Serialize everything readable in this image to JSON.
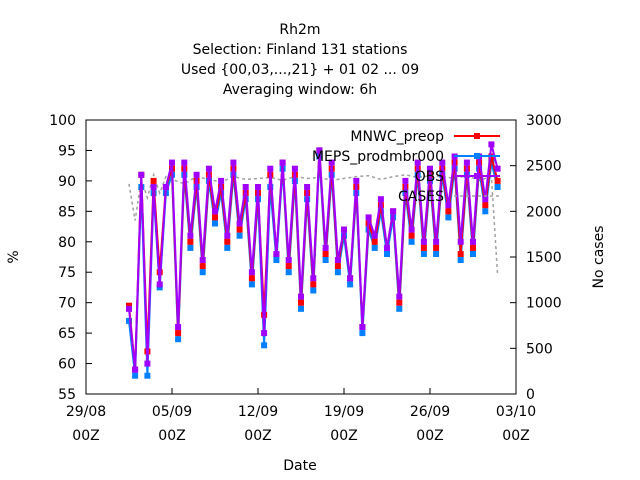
{
  "title_lines": [
    "Rh2m",
    "Selection: Finland     131 stations",
    "Used {00,03,...,21} + 01 02 ... 09",
    "Averaging window:  6h"
  ],
  "chart_data": {
    "type": "line",
    "xlabel": "Date",
    "ylabel": "%",
    "y2label": "No cases",
    "ylim": [
      55,
      100
    ],
    "y2lim": [
      0,
      3000
    ],
    "xlim": [
      "2015-08-29 00Z",
      "2015-10-03 00Z"
    ],
    "yticks": [
      "55",
      "60",
      "65",
      "70",
      "75",
      "80",
      "85",
      "90",
      "95",
      "100"
    ],
    "y2ticks": [
      "0",
      "500",
      "1000",
      "1500",
      "2000",
      "2500",
      "3000"
    ],
    "xticks": [
      {
        "date": "2015-08-29",
        "l1": "29/08",
        "l2": "00Z"
      },
      {
        "date": "2015-09-05",
        "l1": "05/09",
        "l2": "00Z"
      },
      {
        "date": "2015-09-12",
        "l1": "12/09",
        "l2": "00Z"
      },
      {
        "date": "2015-09-19",
        "l1": "19/09",
        "l2": "00Z"
      },
      {
        "date": "2015-09-26",
        "l1": "26/09",
        "l2": "00Z"
      },
      {
        "date": "2015-10-03",
        "l1": "03/10",
        "l2": "00Z"
      }
    ],
    "grid": false,
    "legend_position": "top-right",
    "series": [
      {
        "name": "MNWC_preop",
        "color": "#ff0000",
        "axis": "left",
        "marker": "square",
        "x": [
          "2015-09-01 12Z",
          "2015-09-02 00Z",
          "2015-09-02 12Z",
          "2015-09-03 00Z",
          "2015-09-03 12Z",
          "2015-09-04 00Z",
          "2015-09-04 12Z",
          "2015-09-05 00Z",
          "2015-09-05 12Z",
          "2015-09-06 00Z",
          "2015-09-06 12Z",
          "2015-09-07 00Z",
          "2015-09-07 12Z",
          "2015-09-08 00Z",
          "2015-09-08 12Z",
          "2015-09-09 00Z",
          "2015-09-09 12Z",
          "2015-09-10 00Z",
          "2015-09-10 12Z",
          "2015-09-11 00Z",
          "2015-09-11 12Z",
          "2015-09-12 00Z",
          "2015-09-12 12Z",
          "2015-09-13 00Z",
          "2015-09-13 12Z",
          "2015-09-14 00Z",
          "2015-09-14 12Z",
          "2015-09-15 00Z",
          "2015-09-15 12Z",
          "2015-09-16 00Z",
          "2015-09-16 12Z",
          "2015-09-17 00Z",
          "2015-09-17 12Z",
          "2015-09-18 00Z",
          "2015-09-18 12Z",
          "2015-09-19 00Z",
          "2015-09-19 12Z",
          "2015-09-20 00Z",
          "2015-09-20 12Z",
          "2015-09-21 00Z",
          "2015-09-21 12Z",
          "2015-09-22 00Z",
          "2015-09-22 12Z",
          "2015-09-23 00Z",
          "2015-09-23 12Z",
          "2015-09-24 00Z",
          "2015-09-24 12Z",
          "2015-09-25 00Z",
          "2015-09-25 12Z",
          "2015-09-26 00Z",
          "2015-09-26 12Z",
          "2015-09-27 00Z",
          "2015-09-27 12Z",
          "2015-09-28 00Z",
          "2015-09-28 12Z",
          "2015-09-29 00Z",
          "2015-09-29 12Z",
          "2015-09-30 00Z",
          "2015-09-30 12Z",
          "2015-10-01 00Z",
          "2015-10-01 12Z"
        ],
        "y": [
          69.5,
          59,
          91,
          62,
          90,
          75,
          89,
          92,
          65,
          92,
          80,
          90,
          76,
          91,
          84,
          89,
          80,
          92,
          82,
          88,
          74,
          88,
          68,
          91,
          78,
          93,
          76,
          91,
          70,
          88,
          73,
          95,
          78,
          92,
          76,
          82,
          74,
          89,
          66,
          83,
          80,
          86,
          79,
          85,
          70,
          89,
          81,
          92,
          79,
          91,
          79,
          92,
          85,
          93,
          78,
          92,
          79,
          93,
          86,
          94,
          90
        ]
      },
      {
        "name": "MEPS_prodmbr000",
        "color": "#0080ff",
        "axis": "left",
        "marker": "square",
        "x": [
          "2015-09-01 12Z",
          "2015-09-02 00Z",
          "2015-09-02 12Z",
          "2015-09-03 00Z",
          "2015-09-03 12Z",
          "2015-09-04 00Z",
          "2015-09-04 12Z",
          "2015-09-05 00Z",
          "2015-09-05 12Z",
          "2015-09-06 00Z",
          "2015-09-06 12Z",
          "2015-09-07 00Z",
          "2015-09-07 12Z",
          "2015-09-08 00Z",
          "2015-09-08 12Z",
          "2015-09-09 00Z",
          "2015-09-09 12Z",
          "2015-09-10 00Z",
          "2015-09-10 12Z",
          "2015-09-11 00Z",
          "2015-09-11 12Z",
          "2015-09-12 00Z",
          "2015-09-12 12Z",
          "2015-09-13 00Z",
          "2015-09-13 12Z",
          "2015-09-14 00Z",
          "2015-09-14 12Z",
          "2015-09-15 00Z",
          "2015-09-15 12Z",
          "2015-09-16 00Z",
          "2015-09-16 12Z",
          "2015-09-17 00Z",
          "2015-09-17 12Z",
          "2015-09-18 00Z",
          "2015-09-18 12Z",
          "2015-09-19 00Z",
          "2015-09-19 12Z",
          "2015-09-20 00Z",
          "2015-09-20 12Z",
          "2015-09-21 00Z",
          "2015-09-21 12Z",
          "2015-09-22 00Z",
          "2015-09-22 12Z",
          "2015-09-23 00Z",
          "2015-09-23 12Z",
          "2015-09-24 00Z",
          "2015-09-24 12Z",
          "2015-09-25 00Z",
          "2015-09-25 12Z",
          "2015-09-26 00Z",
          "2015-09-26 12Z",
          "2015-09-27 00Z",
          "2015-09-27 12Z",
          "2015-09-28 00Z",
          "2015-09-28 12Z",
          "2015-09-29 00Z",
          "2015-09-29 12Z",
          "2015-09-30 00Z",
          "2015-09-30 12Z",
          "2015-10-01 00Z",
          "2015-10-01 12Z"
        ],
        "y": [
          67,
          58,
          89,
          58,
          88,
          72.5,
          88,
          91,
          64,
          91,
          79,
          89,
          75,
          90,
          83,
          88,
          79,
          91,
          81,
          87,
          73,
          87,
          63,
          89,
          77,
          92,
          75,
          90,
          69,
          87,
          72,
          94,
          77,
          91,
          75,
          81,
          73,
          88,
          65,
          82,
          79,
          85,
          78,
          84,
          69,
          88,
          80,
          91,
          78,
          90,
          78,
          91,
          84,
          92,
          77,
          91,
          78,
          92,
          85,
          93,
          89
        ]
      },
      {
        "name": "OBS",
        "color": "#a000ff",
        "axis": "left",
        "marker": "square",
        "x": [
          "2015-09-01 12Z",
          "2015-09-02 00Z",
          "2015-09-02 12Z",
          "2015-09-03 00Z",
          "2015-09-03 12Z",
          "2015-09-04 00Z",
          "2015-09-04 12Z",
          "2015-09-05 00Z",
          "2015-09-05 12Z",
          "2015-09-06 00Z",
          "2015-09-06 12Z",
          "2015-09-07 00Z",
          "2015-09-07 12Z",
          "2015-09-08 00Z",
          "2015-09-08 12Z",
          "2015-09-09 00Z",
          "2015-09-09 12Z",
          "2015-09-10 00Z",
          "2015-09-10 12Z",
          "2015-09-11 00Z",
          "2015-09-11 12Z",
          "2015-09-12 00Z",
          "2015-09-12 12Z",
          "2015-09-13 00Z",
          "2015-09-13 12Z",
          "2015-09-14 00Z",
          "2015-09-14 12Z",
          "2015-09-15 00Z",
          "2015-09-15 12Z",
          "2015-09-16 00Z",
          "2015-09-16 12Z",
          "2015-09-17 00Z",
          "2015-09-17 12Z",
          "2015-09-18 00Z",
          "2015-09-18 12Z",
          "2015-09-19 00Z",
          "2015-09-19 12Z",
          "2015-09-20 00Z",
          "2015-09-20 12Z",
          "2015-09-21 00Z",
          "2015-09-21 12Z",
          "2015-09-22 00Z",
          "2015-09-22 12Z",
          "2015-09-23 00Z",
          "2015-09-23 12Z",
          "2015-09-24 00Z",
          "2015-09-24 12Z",
          "2015-09-25 00Z",
          "2015-09-25 12Z",
          "2015-09-26 00Z",
          "2015-09-26 12Z",
          "2015-09-27 00Z",
          "2015-09-27 12Z",
          "2015-09-28 00Z",
          "2015-09-28 12Z",
          "2015-09-29 00Z",
          "2015-09-29 12Z",
          "2015-09-30 00Z",
          "2015-09-30 12Z",
          "2015-10-01 00Z",
          "2015-10-01 12Z"
        ],
        "y": [
          69,
          59,
          91,
          60,
          89,
          73,
          89,
          93,
          66,
          93,
          81,
          91,
          77,
          92,
          85,
          90,
          81,
          93,
          83,
          89,
          75,
          89,
          65,
          92,
          78,
          93,
          77,
          92,
          71,
          89,
          74,
          95,
          79,
          93,
          77,
          82,
          74,
          90,
          66,
          84,
          81,
          87,
          79,
          85,
          71,
          90,
          82,
          93,
          80,
          92,
          80,
          93,
          86,
          94,
          80,
          93,
          80,
          94,
          87,
          96,
          92
        ]
      },
      {
        "name": "CASES",
        "color": "#a0a0a0",
        "axis": "right",
        "marker": "none",
        "x": [
          "2015-09-01 12Z",
          "2015-09-02 00Z",
          "2015-09-02 12Z",
          "2015-09-03 00Z",
          "2015-09-03 12Z",
          "2015-09-04 00Z",
          "2015-09-04 12Z",
          "2015-09-05 00Z",
          "2015-09-06 00Z",
          "2015-09-07 00Z",
          "2015-09-08 00Z",
          "2015-09-09 00Z",
          "2015-09-10 00Z",
          "2015-09-11 00Z",
          "2015-09-12 00Z",
          "2015-09-13 00Z",
          "2015-09-14 00Z",
          "2015-09-15 00Z",
          "2015-09-16 00Z",
          "2015-09-17 00Z",
          "2015-09-18 00Z",
          "2015-09-19 00Z",
          "2015-09-20 00Z",
          "2015-09-21 00Z",
          "2015-09-22 00Z",
          "2015-09-23 00Z",
          "2015-09-24 00Z",
          "2015-09-25 00Z",
          "2015-09-26 00Z",
          "2015-09-27 00Z",
          "2015-09-28 00Z",
          "2015-09-29 00Z",
          "2015-09-30 00Z",
          "2015-10-01 00Z",
          "2015-10-01 12Z"
        ],
        "y": [
          2300,
          1900,
          2350,
          2150,
          2400,
          2200,
          2380,
          2350,
          2300,
          2380,
          2350,
          2320,
          2380,
          2350,
          2360,
          2370,
          2340,
          2380,
          2360,
          2370,
          2340,
          2360,
          2380,
          2390,
          2350,
          2380,
          2400,
          2370,
          2390,
          2380,
          2360,
          2390,
          2340,
          2380,
          1300
        ]
      }
    ]
  }
}
